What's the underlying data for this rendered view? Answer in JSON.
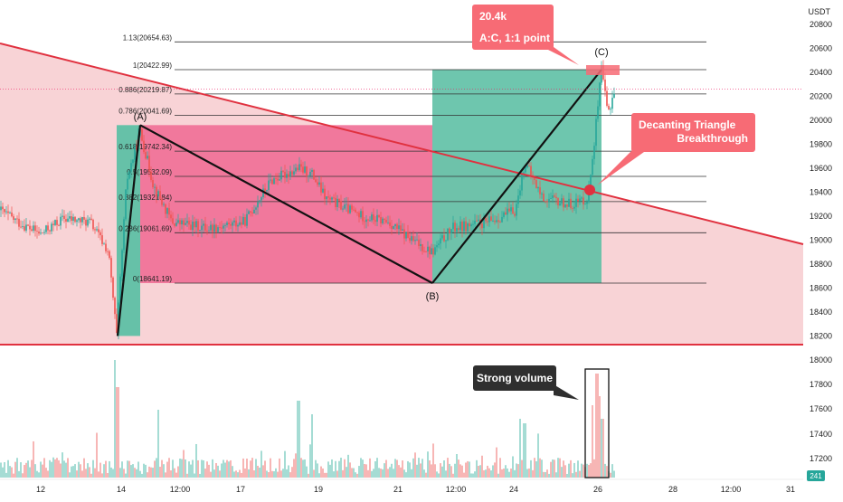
{
  "chart_data": {
    "type": "candlestick",
    "currency": "USDT",
    "price_axis": {
      "range": [
        18100,
        20900
      ],
      "ticks": [
        20800,
        20600,
        20400,
        20200,
        20000,
        19800,
        19600,
        19400,
        19200,
        19000,
        18800,
        18600,
        18400,
        18200
      ]
    },
    "volume_axis": {
      "ticks": [
        18000,
        17800,
        17600,
        17400,
        17200
      ],
      "badge": "241"
    },
    "time_axis": {
      "ticks": [
        "12",
        "14",
        "12:00",
        "17",
        "19",
        "21",
        "12:00",
        "24",
        "26",
        "28",
        "12:00",
        "31"
      ]
    },
    "fib_levels": [
      {
        "label": "1.13(20654.63)",
        "price": 20654.63
      },
      {
        "label": "1(20422.99)",
        "price": 20422.99
      },
      {
        "label": "0.886(20219.87)",
        "price": 20219.87
      },
      {
        "label": "0.786(20041.69)",
        "price": 20041.69
      },
      {
        "label": "0.618(19742.34)",
        "price": 19742.34
      },
      {
        "label": "0.5(19532.09)",
        "price": 19532.09
      },
      {
        "label": "0.382(19321.84)",
        "price": 19321.84
      },
      {
        "label": "0.236(19061.69)",
        "price": 19061.69
      },
      {
        "label": "0(18641.19)",
        "price": 18641.19
      }
    ],
    "waves": [
      {
        "label": "(A)",
        "price": 19960
      },
      {
        "label": "(B)",
        "price": 18641.19
      },
      {
        "label": "(C)",
        "price": 20422.99
      }
    ],
    "last_price": 20260,
    "annotations": {
      "target_box": {
        "line1": "20.4k",
        "line2": "A:C, 1:1 point"
      },
      "triangle_box": {
        "line1": "Decanting Triangle",
        "line2": "Breakthrough"
      },
      "volume_box": "Strong volume"
    },
    "colors": {
      "triangle_fill": "#f8d3d6",
      "triangle_line": "#e0313f",
      "bear_zone": "#f06e96",
      "bull_zone": "#5ec0a5",
      "callout": "#f76b75",
      "dark_callout": "#2f2f2f",
      "bull_candle": "#26a69a",
      "bear_candle": "#ef5350",
      "wave_line": "#111111",
      "fib_line": "#333333"
    }
  }
}
